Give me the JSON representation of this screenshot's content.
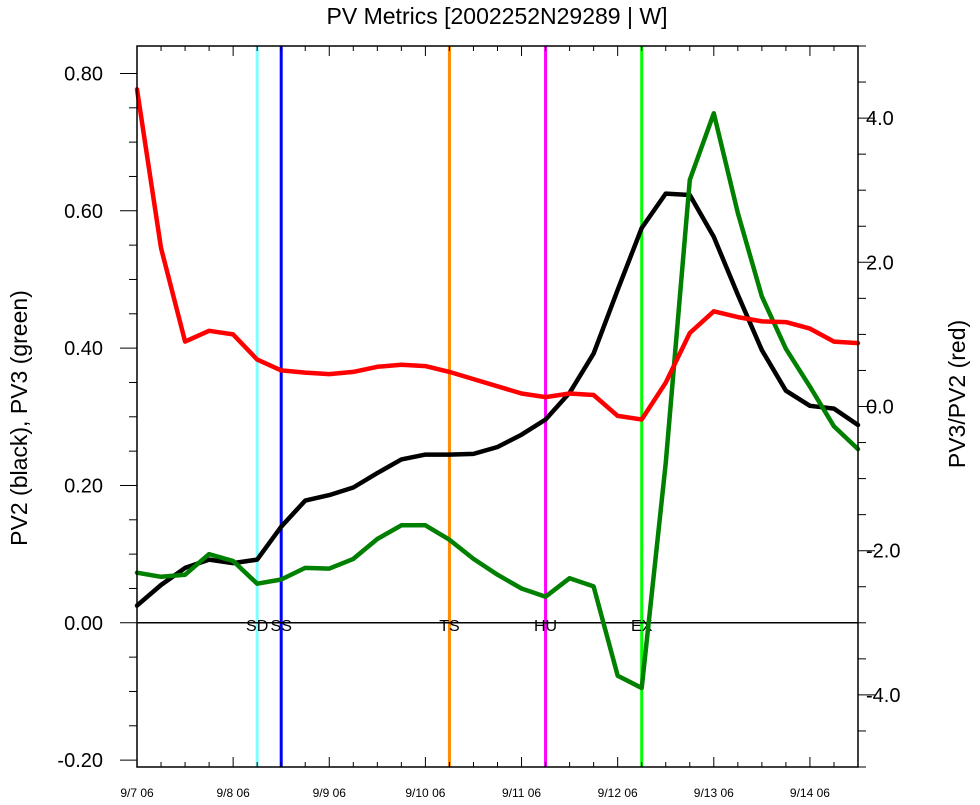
{
  "chart_data": {
    "type": "line",
    "title": "PV Metrics [2002252N29289 | W]",
    "ylabel_left": "PV2 (black), PV3 (green)",
    "ylabel_right": "PV3/PV2 (red)",
    "xlim": [
      0,
      7.5
    ],
    "ylim_left": [
      -0.21,
      0.84
    ],
    "ylim_right": [
      -5.0,
      5.0
    ],
    "x_ticks": [
      {
        "x": 0,
        "label": "9/7 06"
      },
      {
        "x": 1,
        "label": "9/8 06"
      },
      {
        "x": 2,
        "label": "9/9 06"
      },
      {
        "x": 3,
        "label": "9/10 06"
      },
      {
        "x": 4,
        "label": "9/11 06"
      },
      {
        "x": 5,
        "label": "9/12 06"
      },
      {
        "x": 6,
        "label": "9/13 06"
      },
      {
        "x": 7,
        "label": "9/14 06"
      }
    ],
    "y_ticks_left": [
      {
        "v": -0.2,
        "label": "-0.20"
      },
      {
        "v": 0.0,
        "label": "0.00"
      },
      {
        "v": 0.2,
        "label": "0.20"
      },
      {
        "v": 0.4,
        "label": "0.40"
      },
      {
        "v": 0.6,
        "label": "0.60"
      },
      {
        "v": 0.8,
        "label": "0.80"
      }
    ],
    "y_ticks_right": [
      {
        "v": -4.0,
        "label": "-4.0"
      },
      {
        "v": -2.0,
        "label": "-2.0"
      },
      {
        "v": 0.0,
        "label": "0.0"
      },
      {
        "v": 2.0,
        "label": "2.0"
      },
      {
        "v": 4.0,
        "label": "4.0"
      }
    ],
    "zero_line_left": 0.0,
    "series": [
      {
        "axis": "left",
        "color": "#000000",
        "x": [
          0,
          0.25,
          0.5,
          0.75,
          1.0,
          1.25,
          1.5,
          1.75,
          2.0,
          2.25,
          2.5,
          2.75,
          3.0,
          3.25,
          3.5,
          3.75,
          4.0,
          4.25,
          4.5,
          4.75,
          5.0,
          5.25,
          5.5,
          5.75,
          6.0,
          6.25,
          6.5,
          6.75,
          7.0,
          7.25,
          7.5
        ],
        "values": [
          0.025,
          0.055,
          0.08,
          0.092,
          0.087,
          0.092,
          0.14,
          0.178,
          0.186,
          0.197,
          0.218,
          0.238,
          0.245,
          0.245,
          0.246,
          0.256,
          0.274,
          0.296,
          0.335,
          0.392,
          0.485,
          0.575,
          0.625,
          0.623,
          0.562,
          0.478,
          0.397,
          0.338,
          0.316,
          0.312,
          0.288
        ]
      },
      {
        "axis": "left",
        "color": "#008000",
        "x": [
          0,
          0.25,
          0.5,
          0.75,
          1.0,
          1.25,
          1.5,
          1.75,
          2.0,
          2.25,
          2.5,
          2.75,
          3.0,
          3.25,
          3.5,
          3.75,
          4.0,
          4.25,
          4.5,
          4.75,
          5.0,
          5.25,
          5.5,
          5.75,
          6.0,
          6.25,
          6.5,
          6.75,
          7.0,
          7.25,
          7.5
        ],
        "values": [
          0.073,
          0.067,
          0.07,
          0.1,
          0.09,
          0.057,
          0.063,
          0.08,
          0.079,
          0.093,
          0.122,
          0.142,
          0.142,
          0.121,
          0.093,
          0.07,
          0.05,
          0.038,
          0.065,
          0.053,
          -0.077,
          -0.095,
          0.232,
          0.645,
          0.742,
          0.597,
          0.475,
          0.399,
          0.344,
          0.286,
          0.253
        ]
      },
      {
        "axis": "right",
        "color": "#ff0000",
        "x": [
          0,
          0.25,
          0.5,
          0.75,
          1.0,
          1.25,
          1.5,
          1.75,
          2.0,
          2.25,
          2.5,
          2.75,
          3.0,
          3.25,
          3.5,
          3.75,
          4.0,
          4.25,
          4.5,
          4.75,
          5.0,
          5.25,
          5.5,
          5.75,
          6.0,
          6.25,
          6.5,
          6.75,
          7.0,
          7.25,
          7.5
        ],
        "values": [
          4.4,
          2.2,
          0.9,
          1.05,
          1.0,
          0.65,
          0.5,
          0.47,
          0.45,
          0.48,
          0.55,
          0.58,
          0.56,
          0.48,
          0.38,
          0.28,
          0.18,
          0.13,
          0.18,
          0.16,
          -0.13,
          -0.18,
          0.33,
          1.02,
          1.32,
          1.24,
          1.18,
          1.17,
          1.08,
          0.9,
          0.88
        ]
      }
    ],
    "vertical_lines": [
      {
        "x": 1.25,
        "color": "#80ffff",
        "label": "SD"
      },
      {
        "x": 1.5,
        "color": "#0000ff",
        "label": "SS"
      },
      {
        "x": 3.25,
        "color": "#ff8c00",
        "label": "TS"
      },
      {
        "x": 4.25,
        "color": "#ff00ff",
        "label": "HU"
      },
      {
        "x": 5.25,
        "color": "#00ff00",
        "label": "EX"
      }
    ]
  }
}
